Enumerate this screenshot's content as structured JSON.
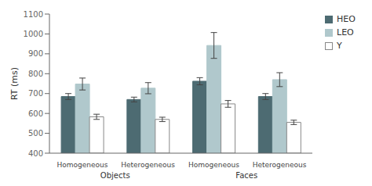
{
  "chart_data": {
    "type": "bar",
    "categories": [
      "Homogeneous",
      "Heterogeneous",
      "Homogeneous",
      "Heterogeneous"
    ],
    "annotations": [
      "Objects",
      "Faces"
    ],
    "ylabel": "RT (ms)",
    "series": [
      {
        "name": "HEO",
        "color": "#4d6b72",
        "values": [
          685,
          670,
          762,
          685
        ],
        "errors": [
          15,
          12,
          18,
          15
        ]
      },
      {
        "name": "LEO",
        "color": "#b0c8cc",
        "values": [
          748,
          727,
          942,
          770
        ],
        "errors": [
          30,
          28,
          65,
          35
        ]
      },
      {
        "name": "Y",
        "color": "#ffffff",
        "values": [
          583,
          570,
          648,
          555
        ],
        "errors": [
          13,
          11,
          17,
          11
        ]
      }
    ],
    "ylim": [
      400,
      1100
    ],
    "yticks": [
      400,
      500,
      600,
      700,
      800,
      900,
      1000,
      1100
    ],
    "legend": "upper right"
  }
}
